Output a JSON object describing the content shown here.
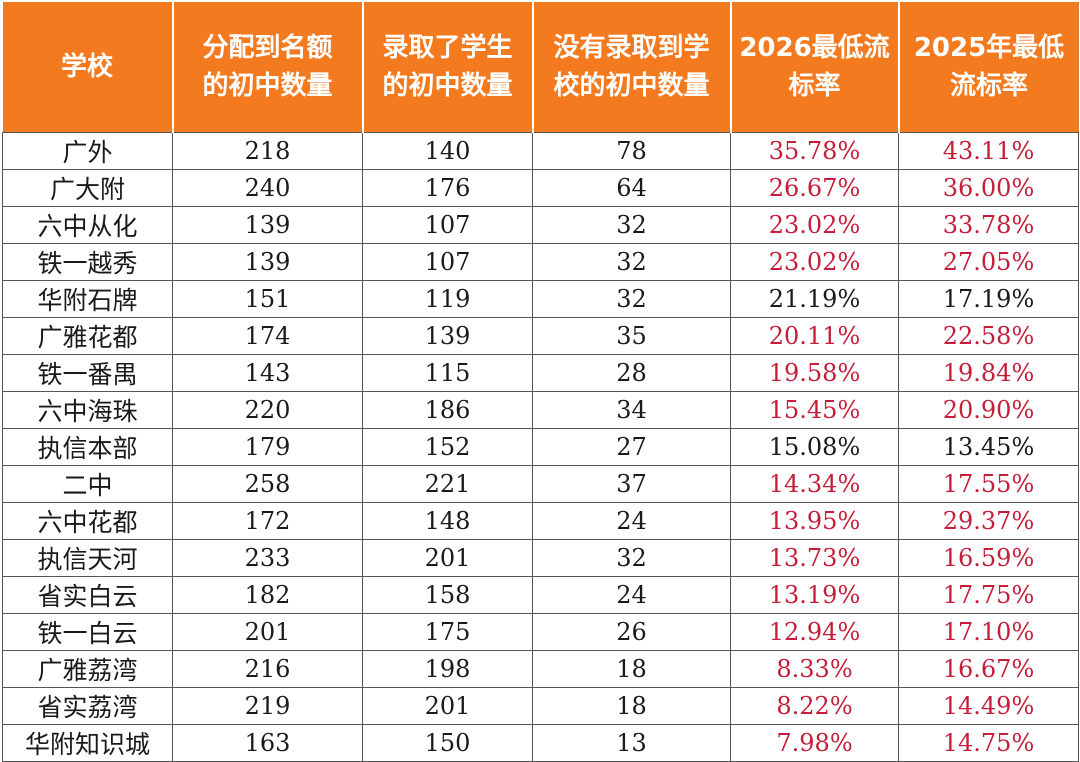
{
  "table": {
    "headers": [
      [
        "学校"
      ],
      [
        "分配到名额",
        "的初中数量"
      ],
      [
        "录取了学生",
        "的初中数量"
      ],
      [
        "没有录取到学",
        "校的初中数量"
      ],
      [
        "2026最低流",
        "标率"
      ],
      [
        "2025年最低",
        "流标率"
      ]
    ],
    "highlight_color": "#c41e3a",
    "header_color": "#f47a20",
    "rows": [
      {
        "school": "广外",
        "allocated": "218",
        "admitted": "140",
        "not_admitted": "78",
        "rate_2026": "35.78%",
        "rate_2025": "43.11%",
        "red_2026": true,
        "red_2025": true
      },
      {
        "school": "广大附",
        "allocated": "240",
        "admitted": "176",
        "not_admitted": "64",
        "rate_2026": "26.67%",
        "rate_2025": "36.00%",
        "red_2026": true,
        "red_2025": true
      },
      {
        "school": "六中从化",
        "allocated": "139",
        "admitted": "107",
        "not_admitted": "32",
        "rate_2026": "23.02%",
        "rate_2025": "33.78%",
        "red_2026": true,
        "red_2025": true
      },
      {
        "school": "铁一越秀",
        "allocated": "139",
        "admitted": "107",
        "not_admitted": "32",
        "rate_2026": "23.02%",
        "rate_2025": "27.05%",
        "red_2026": true,
        "red_2025": true
      },
      {
        "school": "华附石牌",
        "allocated": "151",
        "admitted": "119",
        "not_admitted": "32",
        "rate_2026": "21.19%",
        "rate_2025": "17.19%",
        "red_2026": false,
        "red_2025": false
      },
      {
        "school": "广雅花都",
        "allocated": "174",
        "admitted": "139",
        "not_admitted": "35",
        "rate_2026": "20.11%",
        "rate_2025": "22.58%",
        "red_2026": true,
        "red_2025": true
      },
      {
        "school": "铁一番禺",
        "allocated": "143",
        "admitted": "115",
        "not_admitted": "28",
        "rate_2026": "19.58%",
        "rate_2025": "19.84%",
        "red_2026": true,
        "red_2025": true
      },
      {
        "school": "六中海珠",
        "allocated": "220",
        "admitted": "186",
        "not_admitted": "34",
        "rate_2026": "15.45%",
        "rate_2025": "20.90%",
        "red_2026": true,
        "red_2025": true
      },
      {
        "school": "执信本部",
        "allocated": "179",
        "admitted": "152",
        "not_admitted": "27",
        "rate_2026": "15.08%",
        "rate_2025": "13.45%",
        "red_2026": false,
        "red_2025": false
      },
      {
        "school": "二中",
        "allocated": "258",
        "admitted": "221",
        "not_admitted": "37",
        "rate_2026": "14.34%",
        "rate_2025": "17.55%",
        "red_2026": true,
        "red_2025": true
      },
      {
        "school": "六中花都",
        "allocated": "172",
        "admitted": "148",
        "not_admitted": "24",
        "rate_2026": "13.95%",
        "rate_2025": "29.37%",
        "red_2026": true,
        "red_2025": true
      },
      {
        "school": "执信天河",
        "allocated": "233",
        "admitted": "201",
        "not_admitted": "32",
        "rate_2026": "13.73%",
        "rate_2025": "16.59%",
        "red_2026": true,
        "red_2025": true
      },
      {
        "school": "省实白云",
        "allocated": "182",
        "admitted": "158",
        "not_admitted": "24",
        "rate_2026": "13.19%",
        "rate_2025": "17.75%",
        "red_2026": true,
        "red_2025": true
      },
      {
        "school": "铁一白云",
        "allocated": "201",
        "admitted": "175",
        "not_admitted": "26",
        "rate_2026": "12.94%",
        "rate_2025": "17.10%",
        "red_2026": true,
        "red_2025": true
      },
      {
        "school": "广雅荔湾",
        "allocated": "216",
        "admitted": "198",
        "not_admitted": "18",
        "rate_2026": "8.33%",
        "rate_2025": "16.67%",
        "red_2026": true,
        "red_2025": true
      },
      {
        "school": "省实荔湾",
        "allocated": "219",
        "admitted": "201",
        "not_admitted": "18",
        "rate_2026": "8.22%",
        "rate_2025": "14.49%",
        "red_2026": true,
        "red_2025": true
      },
      {
        "school": "华附知识城",
        "allocated": "163",
        "admitted": "150",
        "not_admitted": "13",
        "rate_2026": "7.98%",
        "rate_2025": "14.75%",
        "red_2026": true,
        "red_2025": true
      }
    ]
  }
}
